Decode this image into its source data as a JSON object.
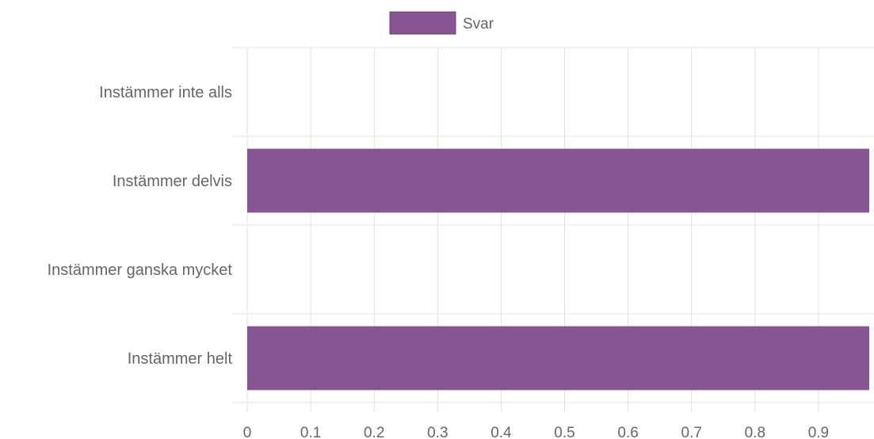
{
  "chart_data": {
    "type": "bar",
    "orientation": "horizontal",
    "categories": [
      "Instämmer inte alls",
      "Instämmer delvis",
      "Instämmer ganska mycket",
      "Instämmer helt"
    ],
    "series": [
      {
        "name": "Svar",
        "values": [
          0,
          1,
          0,
          1
        ],
        "color": "#875592"
      }
    ],
    "x_ticks": [
      "0",
      "0.1",
      "0.2",
      "0.3",
      "0.4",
      "0.5",
      "0.6",
      "0.7",
      "0.8",
      "0.9"
    ],
    "xlim": [
      0,
      0.98
    ],
    "grid": true,
    "legend_position": "top-center",
    "colors": {
      "bar": "#875592",
      "bar_border": "#6e3e7c",
      "grid": "#e1e1e1",
      "text": "#666666"
    }
  }
}
